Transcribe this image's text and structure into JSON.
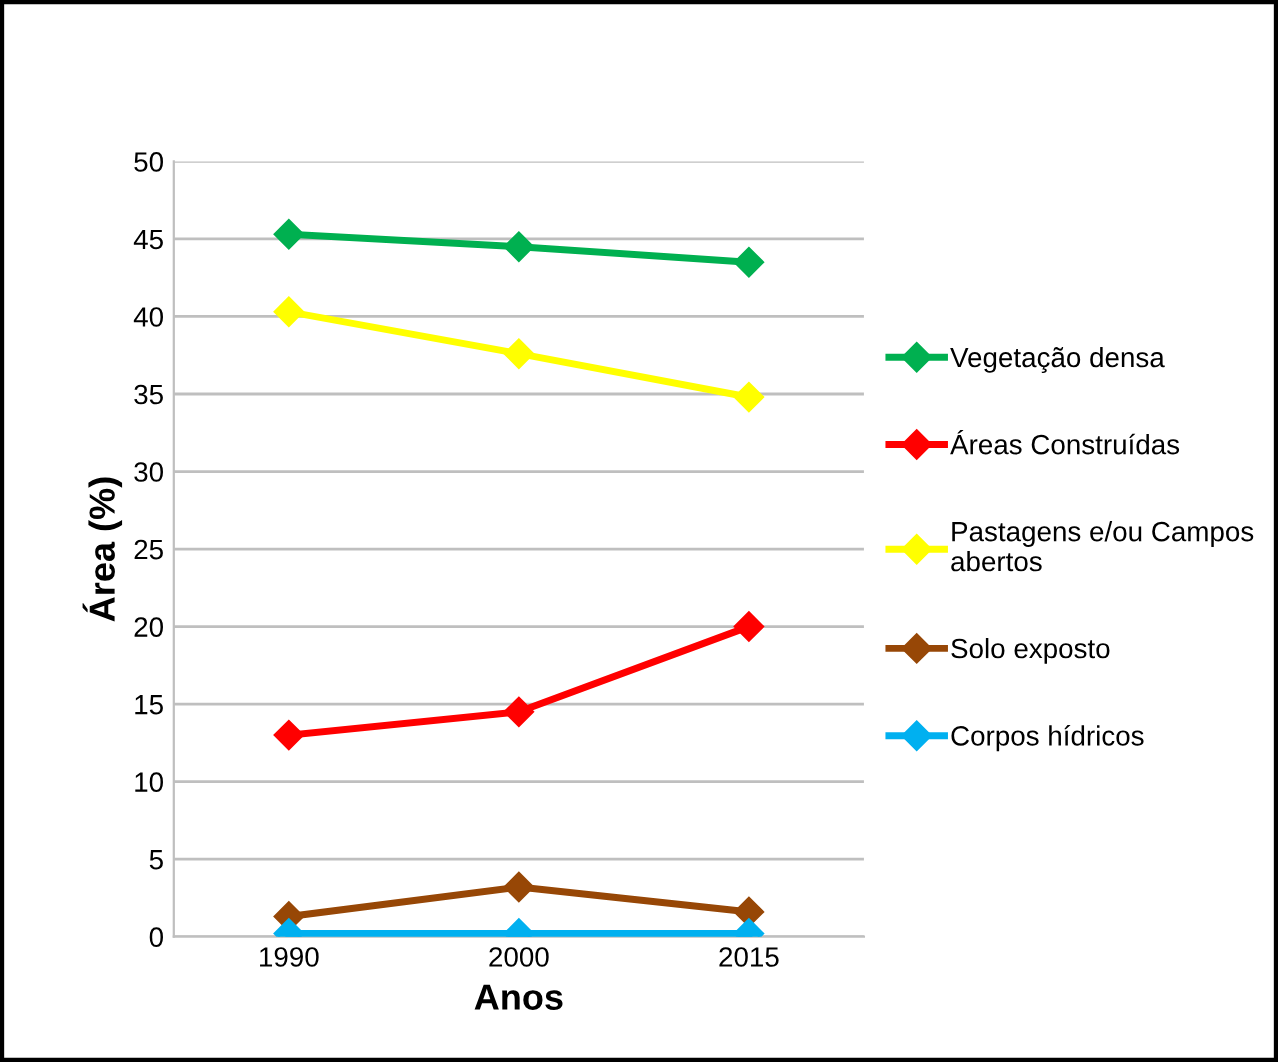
{
  "chart_data": {
    "type": "line",
    "xlabel": "Anos",
    "ylabel": "Área (%)",
    "categories": [
      "1990",
      "2000",
      "2015"
    ],
    "series": [
      {
        "name": "Vegetação densa",
        "color": "#00b050",
        "values": [
          45.3,
          44.5,
          43.5
        ]
      },
      {
        "name": "Áreas Construídas",
        "color": "#ff0000",
        "values": [
          13,
          14.5,
          20
        ]
      },
      {
        "name": "Pastagens e/ou Campos\nabertos",
        "color": "#ffff00",
        "values": [
          40.3,
          37.6,
          34.8
        ]
      },
      {
        "name": "Solo exposto",
        "color": "#974706",
        "values": [
          1.3,
          3.2,
          1.6
        ]
      },
      {
        "name": "Corpos hídricos",
        "color": "#00b0f0",
        "values": [
          0.2,
          0.2,
          0.2
        ]
      }
    ],
    "ylim": [
      0,
      50
    ],
    "yticks": [
      0,
      5,
      10,
      15,
      20,
      25,
      30,
      35,
      40,
      45,
      50
    ],
    "grid": "y",
    "legend": "right",
    "marker": "diamond",
    "line_style": "solid"
  }
}
